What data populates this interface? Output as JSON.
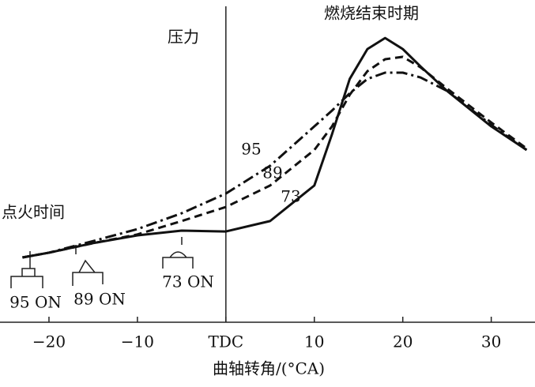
{
  "chart_data": {
    "type": "line",
    "y_axis_label": "压力",
    "x_axis_label": "曲轴转角/(°CA)",
    "annotations": [
      "燃烧结束时期",
      "点火时间",
      "95 ON",
      "89 ON",
      "73 ON"
    ],
    "x": [
      -23,
      -20,
      -15,
      -10,
      -5,
      0,
      5,
      10,
      12,
      14,
      16,
      18,
      20,
      22,
      25,
      30,
      34
    ],
    "xlim": [
      -25,
      34.5
    ],
    "xticks": [
      {
        "value": -20,
        "label": "−20"
      },
      {
        "value": -10,
        "label": "−10"
      },
      {
        "value": 0,
        "label": "TDC"
      },
      10,
      20,
      30
    ],
    "ylim": [
      0,
      100
    ],
    "series": [
      {
        "name": "95",
        "color": "#111",
        "dash": "dashdot",
        "values": [
          21.7,
          23.3,
          27.2,
          31.2,
          36.5,
          43.1,
          52.4,
          65.6,
          70.9,
          76.7,
          81.5,
          83.6,
          83.6,
          82.0,
          77.5,
          66.1,
          57.7
        ]
      },
      {
        "name": "89",
        "color": "#111",
        "dash": "dashed",
        "values": [
          21.7,
          23.3,
          26.5,
          29.4,
          33.9,
          38.6,
          45.8,
          57.7,
          65.6,
          76.2,
          84.1,
          88.1,
          88.9,
          85.4,
          78.3,
          66.9,
          58.2
        ]
      },
      {
        "name": "73",
        "color": "#111",
        "dash": "solid",
        "values": [
          21.7,
          23.3,
          26.5,
          29.1,
          30.7,
          30.4,
          33.9,
          45.8,
          63.0,
          81.5,
          91.5,
          95.2,
          91.5,
          85.7,
          77.5,
          65.6,
          57.7
        ]
      }
    ]
  }
}
